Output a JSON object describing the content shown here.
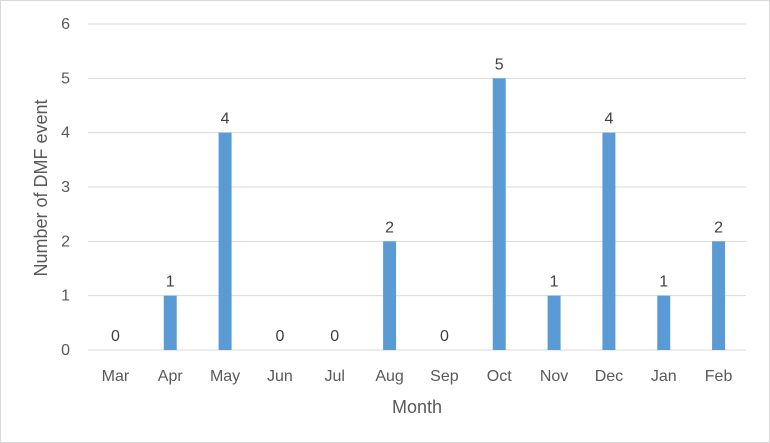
{
  "chart_data": {
    "type": "bar",
    "title": "",
    "xlabel": "Month",
    "ylabel": "Number of DMF event",
    "categories": [
      "Mar",
      "Apr",
      "May",
      "Jun",
      "Jul",
      "Aug",
      "Sep",
      "Oct",
      "Nov",
      "Dec",
      "Jan",
      "Feb"
    ],
    "values": [
      0,
      1,
      4,
      0,
      0,
      2,
      0,
      5,
      1,
      4,
      1,
      2
    ],
    "data_labels": [
      "0",
      "1",
      "4",
      "0",
      "0",
      "2",
      "0",
      "5",
      "1",
      "4",
      "1",
      "2"
    ],
    "ylim": [
      0,
      6
    ],
    "yticks": [
      0,
      1,
      2,
      3,
      4,
      5,
      6
    ],
    "ytick_labels": [
      "0",
      "1",
      "2",
      "3",
      "4",
      "5",
      "6"
    ],
    "grid": true,
    "legend": "none",
    "colors": {
      "bar": "#5b9bd5",
      "grid": "#d9d9d9",
      "text": "#595959",
      "label": "#404040"
    }
  }
}
